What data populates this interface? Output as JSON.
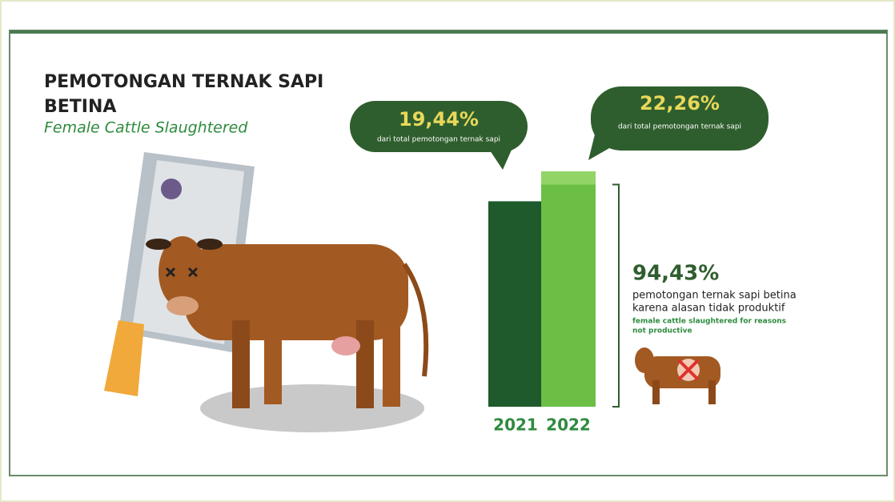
{
  "chart_data": {
    "type": "bar",
    "title": "PEMOTONGAN TERNAK SAPI BETINA",
    "subtitle": "Female Cattle Slaughtered",
    "categories": [
      "2021",
      "2022"
    ],
    "values": [
      19.44,
      22.26
    ],
    "value_labels": [
      "19,44%",
      "22,26%"
    ],
    "colors": [
      "#1e5a2c",
      "#6bbf45"
    ],
    "bubble_texts": [
      "dari total pemotongan ternak sapi",
      "dari total pemotongan ternak sapi"
    ],
    "highlight": {
      "value": 94.43,
      "label": "94,43%",
      "text": [
        "pemotongan ternak sapi betina",
        "karena alasan tidak produktif"
      ],
      "text_en": [
        "female cattle slaughtered for reasons",
        "not productive"
      ]
    }
  }
}
